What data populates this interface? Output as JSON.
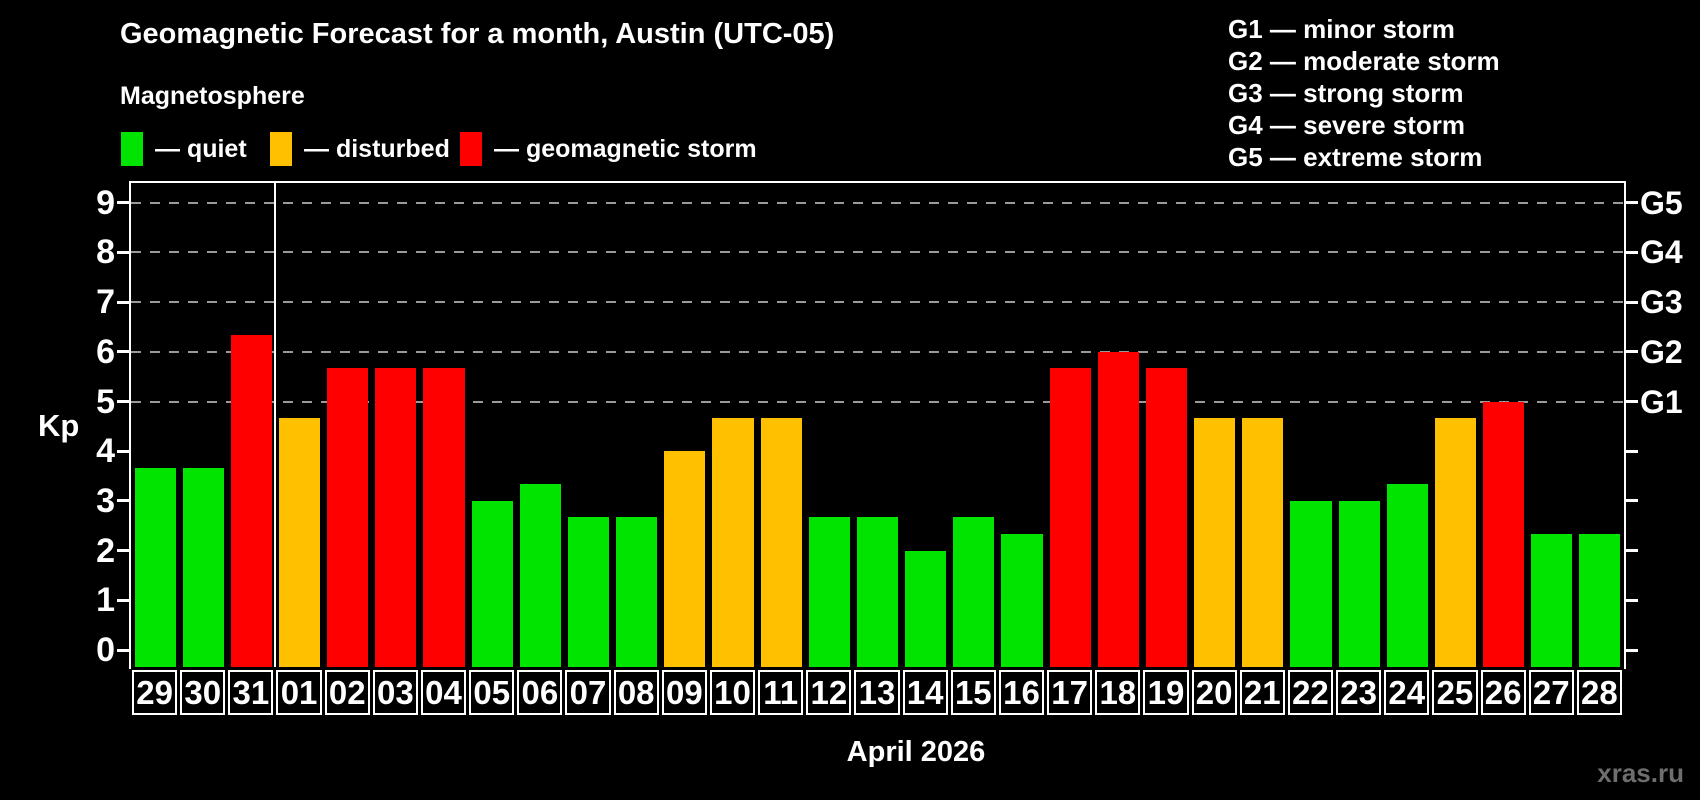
{
  "title": "Geomagnetic Forecast for a month, Austin (UTC-05)",
  "subtitle": "Magnetosphere",
  "legend": {
    "items": [
      {
        "name": "quiet",
        "label": "— quiet",
        "color": "#00e400"
      },
      {
        "name": "disturbed",
        "label": "— disturbed",
        "color": "#ffc000"
      },
      {
        "name": "storm",
        "label": "— geomagnetic storm",
        "color": "#ff0000"
      }
    ]
  },
  "g_legend": {
    "lines": [
      "G1 — minor storm",
      "G2 — moderate storm",
      "G3 — strong storm",
      "G4 — severe storm",
      "G5 — extreme storm"
    ]
  },
  "axis": {
    "ylabel": "Kp",
    "xlabel": "April 2026"
  },
  "watermark": "xras.ru",
  "chart_data": {
    "type": "bar",
    "title": "Geomagnetic Forecast for a month, Austin (UTC-05)",
    "xlabel": "April 2026",
    "ylabel": "Kp",
    "ylim": [
      -0.35,
      9.4
    ],
    "yticks": [
      0,
      1,
      2,
      3,
      4,
      5,
      6,
      7,
      8,
      9
    ],
    "grid": "dashed horizontal gridlines only at Kp 5,6,7,8,9",
    "legend_position": "top",
    "categories": [
      "29",
      "30",
      "31",
      "01",
      "02",
      "03",
      "04",
      "05",
      "06",
      "07",
      "08",
      "09",
      "10",
      "11",
      "12",
      "13",
      "14",
      "15",
      "16",
      "17",
      "18",
      "19",
      "20",
      "21",
      "22",
      "23",
      "24",
      "25",
      "26",
      "27",
      "28"
    ],
    "values": [
      3.67,
      3.67,
      6.33,
      4.67,
      5.67,
      5.67,
      5.67,
      3,
      3.33,
      2.67,
      2.67,
      4,
      4.67,
      4.67,
      2.67,
      2.67,
      2,
      2.67,
      2.33,
      5.67,
      6,
      5.67,
      4.67,
      4.67,
      3,
      3,
      3.33,
      4.67,
      5,
      2.33,
      2.33
    ],
    "statuses": [
      "quiet",
      "quiet",
      "storm",
      "disturbed",
      "storm",
      "storm",
      "storm",
      "quiet",
      "quiet",
      "quiet",
      "quiet",
      "disturbed",
      "disturbed",
      "disturbed",
      "quiet",
      "quiet",
      "quiet",
      "quiet",
      "quiet",
      "storm",
      "storm",
      "storm",
      "disturbed",
      "disturbed",
      "quiet",
      "quiet",
      "quiet",
      "disturbed",
      "storm",
      "quiet",
      "quiet"
    ],
    "colors": {
      "quiet": "#00e400",
      "disturbed": "#ffc000",
      "storm": "#ff0000"
    },
    "month_divider_after_index": 2,
    "g_levels": [
      {
        "label": "G1",
        "kp": 5
      },
      {
        "label": "G2",
        "kp": 6
      },
      {
        "label": "G3",
        "kp": 7
      },
      {
        "label": "G4",
        "kp": 8
      },
      {
        "label": "G5",
        "kp": 9
      }
    ]
  }
}
